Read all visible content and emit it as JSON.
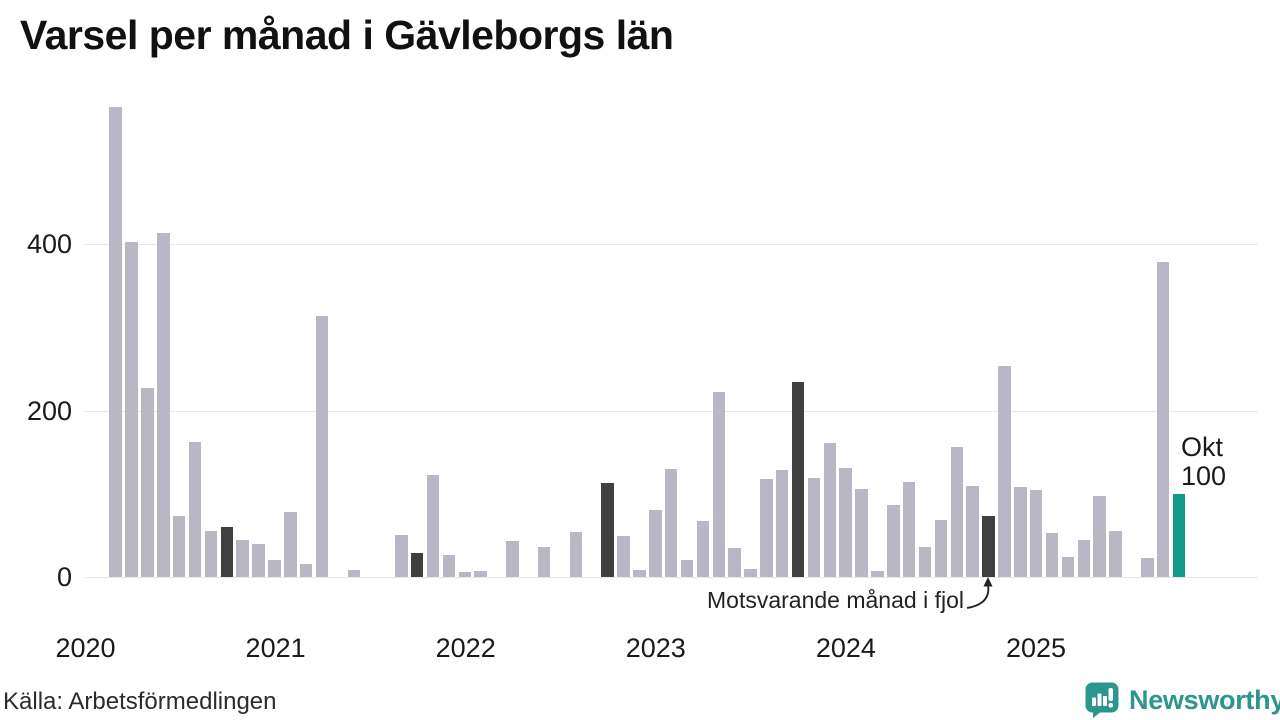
{
  "title": "Varsel per månad i Gävleborgs län",
  "annotation": {
    "text": "Motsvarande månad i fjol"
  },
  "current_label": {
    "month": "Okt",
    "value": "100"
  },
  "source": "Källa: Arbetsförmedlingen",
  "logo": {
    "text": "Newsworthy"
  },
  "colors": {
    "bar": "#b9b6c6",
    "last_year_bar": "#3f3f3f",
    "current_bar": "#13998a",
    "grid": "#e8e7ec",
    "logo_teal": "#2d968c"
  },
  "chart_data": {
    "type": "bar",
    "title": "Varsel per månad i Gävleborgs län",
    "xlabel": "",
    "ylabel": "",
    "y_ticks": [
      0,
      200,
      400
    ],
    "ylim": [
      0,
      580
    ],
    "grid": true,
    "legend": false,
    "x_year_labels": [
      "2020",
      "2021",
      "2022",
      "2023",
      "2024",
      "2025"
    ],
    "months": [
      "2020-03",
      "2020-04",
      "2020-05",
      "2020-06",
      "2020-07",
      "2020-08",
      "2020-09",
      "2020-10",
      "2020-11",
      "2020-12",
      "2021-01",
      "2021-02",
      "2021-03",
      "2021-04",
      "2021-05",
      "2021-06",
      "2021-07",
      "2021-08",
      "2021-09",
      "2021-10",
      "2021-11",
      "2021-12",
      "2022-01",
      "2022-02",
      "2022-03",
      "2022-04",
      "2022-05",
      "2022-06",
      "2022-07",
      "2022-08",
      "2022-09",
      "2022-10",
      "2022-11",
      "2022-12",
      "2023-01",
      "2023-02",
      "2023-03",
      "2023-04",
      "2023-05",
      "2023-06",
      "2023-07",
      "2023-08",
      "2023-09",
      "2023-10",
      "2023-11",
      "2023-12",
      "2024-01",
      "2024-02",
      "2024-03",
      "2024-04",
      "2024-05",
      "2024-06",
      "2024-07",
      "2024-08",
      "2024-09",
      "2024-10",
      "2024-11",
      "2024-12",
      "2025-01",
      "2025-02",
      "2025-03",
      "2025-04",
      "2025-05",
      "2025-06",
      "2025-07",
      "2025-08",
      "2025-09",
      "2025-10"
    ],
    "values": [
      565,
      402,
      227,
      413,
      73,
      162,
      55,
      60,
      45,
      40,
      20,
      78,
      16,
      313,
      0,
      8,
      0,
      0,
      51,
      29,
      123,
      27,
      6,
      7,
      0,
      43,
      0,
      36,
      0,
      54,
      0,
      113,
      49,
      8,
      81,
      130,
      20,
      67,
      222,
      35,
      10,
      118,
      128,
      234,
      119,
      161,
      131,
      106,
      7,
      87,
      114,
      36,
      68,
      156,
      109,
      73,
      254,
      108,
      105,
      53,
      24,
      45,
      97,
      55,
      0,
      23,
      378,
      100
    ],
    "last_year_highlight_indices": [
      7,
      19,
      31,
      43,
      55
    ],
    "current_index": 67,
    "series_note_last_year": "Motsvarande månad i fjol",
    "current_point_label": "Okt 100"
  }
}
